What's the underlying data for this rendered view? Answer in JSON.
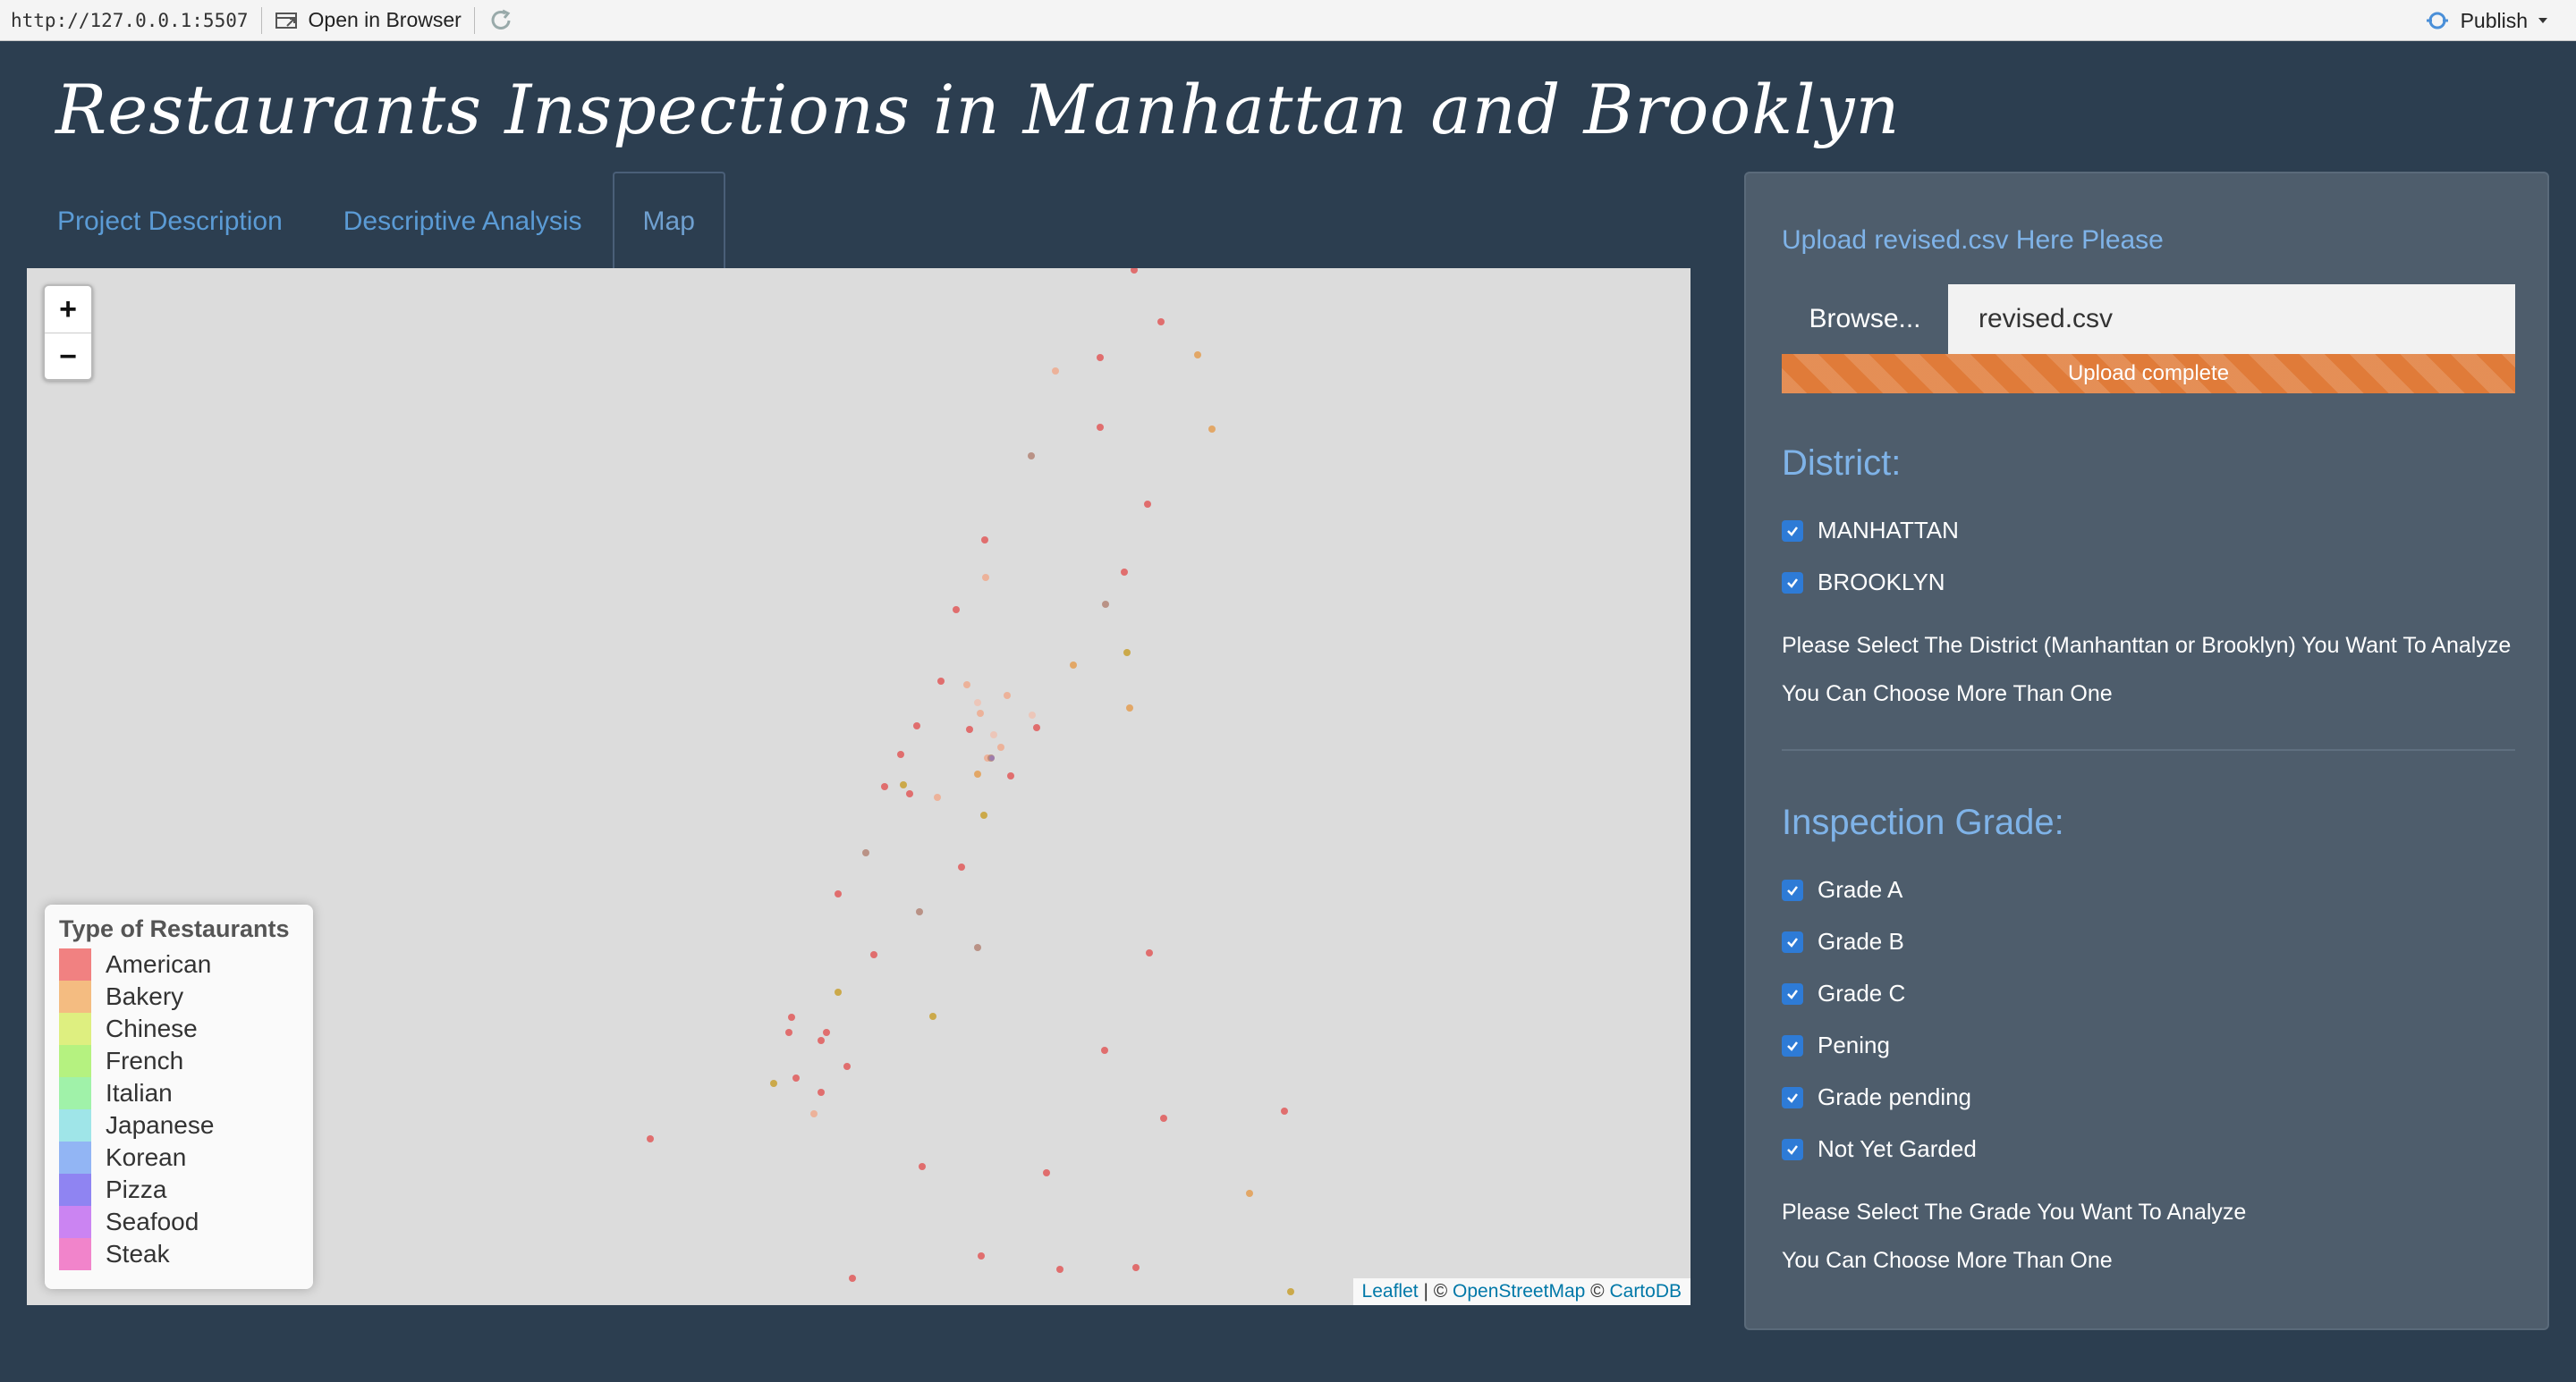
{
  "toolbar": {
    "url": "http://127.0.0.1:5507",
    "open_in_browser": "Open in Browser",
    "publish": "Publish"
  },
  "app": {
    "title": "Restaurants Inspections in Manhattan and Brooklyn"
  },
  "tabs": [
    {
      "label": "Project Description",
      "active": false
    },
    {
      "label": "Descriptive Analysis",
      "active": false
    },
    {
      "label": "Map",
      "active": true
    }
  ],
  "map": {
    "zoom_in": "+",
    "zoom_out": "−",
    "legend": {
      "title": "Type of Restaurants",
      "items": [
        {
          "label": "American",
          "color": "#ef6b6b"
        },
        {
          "label": "Bakery",
          "color": "#f2b06b"
        },
        {
          "label": "Chinese",
          "color": "#d8ec6a"
        },
        {
          "label": "French",
          "color": "#a8f06a"
        },
        {
          "label": "Italian",
          "color": "#8ff09a"
        },
        {
          "label": "Japanese",
          "color": "#8ee0e4"
        },
        {
          "label": "Korean",
          "color": "#7fa8f2"
        },
        {
          "label": "Pizza",
          "color": "#7b6ef0"
        },
        {
          "label": "Seafood",
          "color": "#c26ef0"
        },
        {
          "label": "Steak",
          "color": "#ef6fc2"
        }
      ]
    },
    "attribution": {
      "leaflet": "Leaflet",
      "sep1": " | © ",
      "osm": "OpenStreetMap",
      "sep2": " © ",
      "carto": "CartoDB"
    }
  },
  "sidebar": {
    "upload_label": "Upload revised.csv Here Please",
    "browse_label": "Browse...",
    "file_value": "revised.csv",
    "progress_text": "Upload complete",
    "district": {
      "title": "District:",
      "options": [
        {
          "label": "MANHATTAN",
          "checked": true
        },
        {
          "label": "BROOKLYN",
          "checked": true
        }
      ],
      "help1": "Please Select The District (Manhanttan or Brooklyn) You Want To Analyze",
      "help2": "You Can Choose More Than One"
    },
    "grade": {
      "title": "Inspection Grade:",
      "options": [
        {
          "label": "Grade A",
          "checked": true
        },
        {
          "label": "Grade B",
          "checked": true
        },
        {
          "label": "Grade C",
          "checked": true
        },
        {
          "label": "Pening",
          "checked": true
        },
        {
          "label": "Grade pending",
          "checked": true
        },
        {
          "label": "Not Yet Garded",
          "checked": true
        }
      ],
      "help1": "Please Select The Grade You Want To Analyze",
      "help2": "You Can Choose More Than One"
    }
  },
  "colors": {
    "background": "#2c3e50",
    "sidebar": "#4e5d6c",
    "accent_link": "#7fb3e8",
    "progress": "#e07b39",
    "checkbox": "#2e7bd6"
  }
}
